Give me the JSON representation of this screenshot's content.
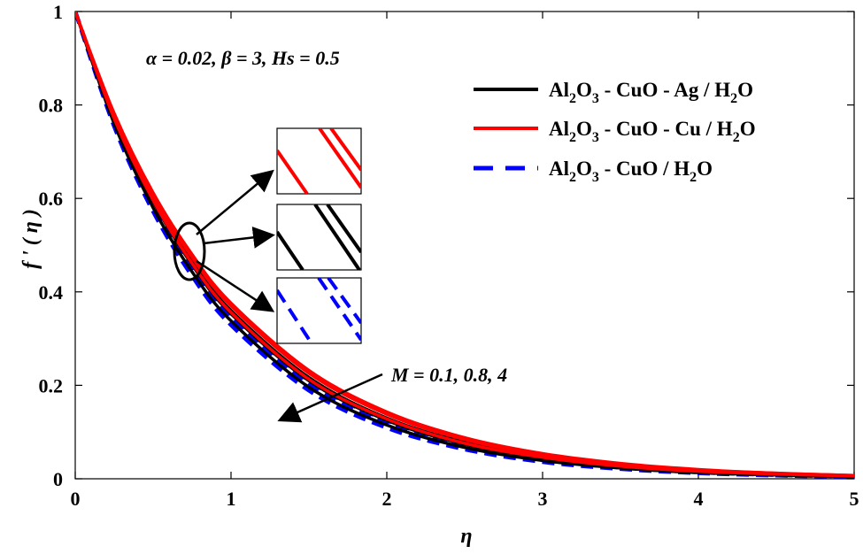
{
  "chart_data": {
    "type": "line",
    "xlabel": "η",
    "ylabel": "f ' ( η )",
    "xlim": [
      0,
      5
    ],
    "ylim": [
      0,
      1
    ],
    "xticks": [
      "0",
      "1",
      "2",
      "3",
      "4",
      "5"
    ],
    "yticks": [
      "0",
      "0.2",
      "0.4",
      "0.6",
      "0.8",
      "1"
    ],
    "grid": false,
    "legend_position": "top-right",
    "parameter_annotation": "α = 0.02, β = 3, Hs = 0.5",
    "arrow_annotation": "M = 0.1, 0.8, 4",
    "colors": {
      "ag": "#000000",
      "cu": "#ff0000",
      "hybrid": "#0000ff"
    },
    "x": [
      0,
      0.25,
      0.5,
      0.75,
      1,
      1.5,
      2,
      2.5,
      3,
      3.5,
      4,
      4.5,
      5
    ],
    "series": [
      {
        "name": "Al2O3 - CuO - Ag / H2O",
        "legend": {
          "a": "Al",
          "a_sub": "2",
          "b": "O",
          "b_sub": "3",
          "c": " - CuO - Ag / H",
          "c_sub": "2",
          "d": "O"
        },
        "color": "#000000",
        "dash": "solid",
        "curves": [
          {
            "M": 0.1,
            "values": [
              1,
              0.774,
              0.6,
              0.465,
              0.36,
              0.217,
              0.13,
              0.078,
              0.047,
              0.028,
              0.017,
              0.01,
              0.006
            ]
          },
          {
            "M": 0.8,
            "values": [
              1,
              0.77,
              0.594,
              0.458,
              0.353,
              0.21,
              0.125,
              0.074,
              0.044,
              0.026,
              0.016,
              0.009,
              0.005
            ]
          },
          {
            "M": 4,
            "values": [
              1,
              0.76,
              0.58,
              0.443,
              0.338,
              0.196,
              0.115,
              0.067,
              0.039,
              0.023,
              0.013,
              0.008,
              0.004
            ]
          }
        ]
      },
      {
        "name": "Al2O3 - CuO - Cu / H2O",
        "legend": {
          "a": "Al",
          "a_sub": "2",
          "b": "O",
          "b_sub": "3",
          "c": " - CuO - Cu / H",
          "c_sub": "2",
          "d": "O"
        },
        "color": "#ff0000",
        "dash": "solid",
        "curves": [
          {
            "M": 0.1,
            "values": [
              1,
              0.782,
              0.612,
              0.48,
              0.376,
              0.232,
              0.143,
              0.088,
              0.054,
              0.033,
              0.02,
              0.012,
              0.007
            ]
          },
          {
            "M": 0.8,
            "values": [
              1,
              0.779,
              0.607,
              0.474,
              0.37,
              0.226,
              0.138,
              0.084,
              0.051,
              0.031,
              0.019,
              0.012,
              0.007
            ]
          },
          {
            "M": 4,
            "values": [
              1,
              0.771,
              0.596,
              0.461,
              0.356,
              0.213,
              0.128,
              0.076,
              0.046,
              0.027,
              0.016,
              0.01,
              0.006
            ]
          }
        ]
      },
      {
        "name": "Al2O3 - CuO / H2O",
        "legend": {
          "a": "Al",
          "a_sub": "2",
          "b": "O",
          "b_sub": "3",
          "c": " - CuO / H",
          "c_sub": "2",
          "d": "O"
        },
        "color": "#0000ff",
        "dash": "dashed",
        "curves": [
          {
            "M": 0.1,
            "values": [
              1,
              0.77,
              0.594,
              0.458,
              0.353,
              0.21,
              0.125,
              0.074,
              0.044,
              0.026,
              0.016,
              0.009,
              0.005
            ]
          },
          {
            "M": 0.8,
            "values": [
              1,
              0.765,
              0.587,
              0.45,
              0.345,
              0.203,
              0.12,
              0.07,
              0.041,
              0.024,
              0.014,
              0.008,
              0.005
            ]
          },
          {
            "M": 4,
            "values": [
              1,
              0.754,
              0.572,
              0.434,
              0.329,
              0.189,
              0.109,
              0.063,
              0.036,
              0.021,
              0.012,
              0.007,
              0.004
            ]
          }
        ]
      }
    ]
  }
}
